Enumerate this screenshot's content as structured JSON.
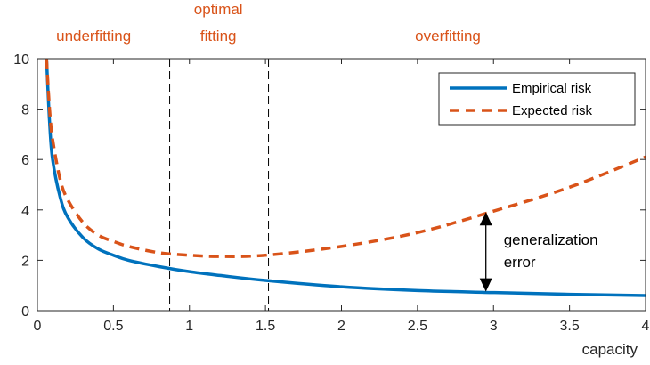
{
  "chart_data": {
    "type": "line",
    "title": "",
    "xlabel": "capacity",
    "ylabel": "",
    "xlim": [
      0,
      4
    ],
    "ylim": [
      0,
      10
    ],
    "x_ticks": [
      "0",
      "0.5",
      "1",
      "1.5",
      "2",
      "2.5",
      "3",
      "3.5",
      "4"
    ],
    "y_ticks": [
      "0",
      "2",
      "4",
      "6",
      "8",
      "10"
    ],
    "grid": false,
    "legend_position": "top-right",
    "series": [
      {
        "name": "Empirical risk",
        "style": "solid",
        "color": "#0072bd",
        "x": [
          0.06,
          0.08,
          0.1,
          0.15,
          0.2,
          0.3,
          0.4,
          0.5,
          0.6,
          0.8,
          1.0,
          1.2,
          1.5,
          2.0,
          2.5,
          3.0,
          3.5,
          4.0
        ],
        "y": [
          10,
          7.5,
          6.0,
          4.5,
          3.7,
          2.9,
          2.45,
          2.2,
          2.0,
          1.75,
          1.55,
          1.4,
          1.2,
          0.95,
          0.8,
          0.72,
          0.65,
          0.6
        ]
      },
      {
        "name": "Expected risk",
        "style": "dashed",
        "color": "#d95319",
        "x": [
          0.06,
          0.08,
          0.1,
          0.15,
          0.2,
          0.3,
          0.4,
          0.5,
          0.6,
          0.8,
          1.0,
          1.2,
          1.5,
          2.0,
          2.5,
          3.0,
          3.5,
          4.0
        ],
        "y": [
          10,
          8.0,
          6.8,
          5.2,
          4.4,
          3.5,
          3.0,
          2.75,
          2.55,
          2.3,
          2.2,
          2.15,
          2.2,
          2.55,
          3.1,
          3.95,
          4.9,
          6.1
        ]
      }
    ],
    "regions": [
      {
        "label": "underfitting",
        "label_lines": [
          "underfitting"
        ],
        "x_center": 0.37
      },
      {
        "label": "optimal fitting",
        "label_lines": [
          "optimal",
          "fitting"
        ],
        "x_center": 1.19
      },
      {
        "label": "overfitting",
        "label_lines": [
          "overfitting"
        ],
        "x_center": 2.7
      }
    ],
    "boundaries": [
      0.87,
      1.52
    ],
    "annotation": {
      "lines": [
        "generalization",
        "error"
      ],
      "x": 2.95,
      "y_from": 0.72,
      "y_to": 3.95
    }
  }
}
